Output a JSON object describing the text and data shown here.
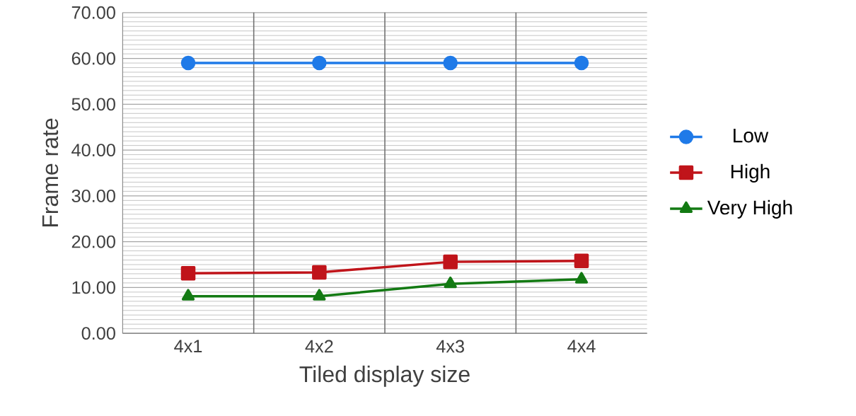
{
  "chart_data": {
    "type": "line",
    "xlabel": "Tiled display size",
    "ylabel": "Frame rate",
    "categories": [
      "4x1",
      "4x2",
      "4x3",
      "4x4"
    ],
    "series": [
      {
        "name": "Low",
        "color": "#1f7ae8",
        "marker": "circle",
        "values": [
          59,
          59,
          59,
          59
        ]
      },
      {
        "name": "High",
        "color": "#c0141a",
        "marker": "square",
        "values": [
          13.1,
          13.3,
          15.6,
          15.8
        ]
      },
      {
        "name": "Very High",
        "color": "#137a13",
        "marker": "triangle",
        "values": [
          8.1,
          8.1,
          10.8,
          11.8
        ]
      }
    ],
    "ylim": [
      0,
      70
    ],
    "yticks": [
      {
        "value": 0,
        "label": "0.00"
      },
      {
        "value": 10,
        "label": "10.00"
      },
      {
        "value": 20,
        "label": "20.00"
      },
      {
        "value": 30,
        "label": "30.00"
      },
      {
        "value": 40,
        "label": "40.00"
      },
      {
        "value": 50,
        "label": "50.00"
      },
      {
        "value": 60,
        "label": "60.00"
      },
      {
        "value": 70,
        "label": "70.00"
      }
    ],
    "grid": true,
    "legend": "right",
    "line_style": "solid"
  }
}
